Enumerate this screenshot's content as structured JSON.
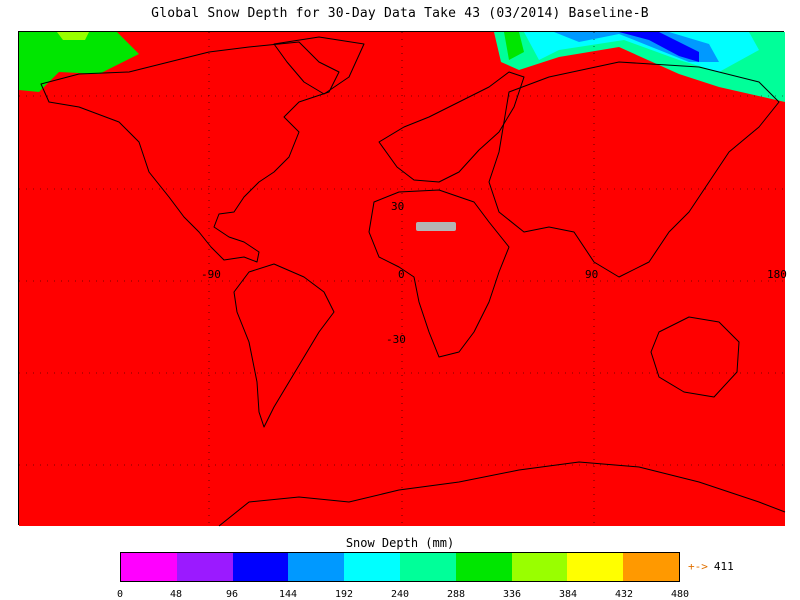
{
  "title": "Global Snow Depth for 30-Day Data Take 43 (03/2014) Baseline-B",
  "map": {
    "background_color": "#ff0000",
    "no_data_color": "#b4b4b4",
    "lat_labels": [
      "30",
      "-30"
    ],
    "lon_labels": [
      "-90",
      "0",
      "90",
      "180"
    ]
  },
  "legend": {
    "title": "Snow Depth (mm)",
    "ticks": [
      "0",
      "48",
      "96",
      "144",
      "192",
      "240",
      "288",
      "336",
      "384",
      "432",
      "480"
    ],
    "colors": [
      "#ff00ff",
      "#9b1aff",
      "#0000ff",
      "#0099ff",
      "#00ffff",
      "#00ff99",
      "#00e600",
      "#99ff00",
      "#ffff00",
      "#ff9900"
    ],
    "overflow_arrow": "+->",
    "overflow_value": "411"
  }
}
